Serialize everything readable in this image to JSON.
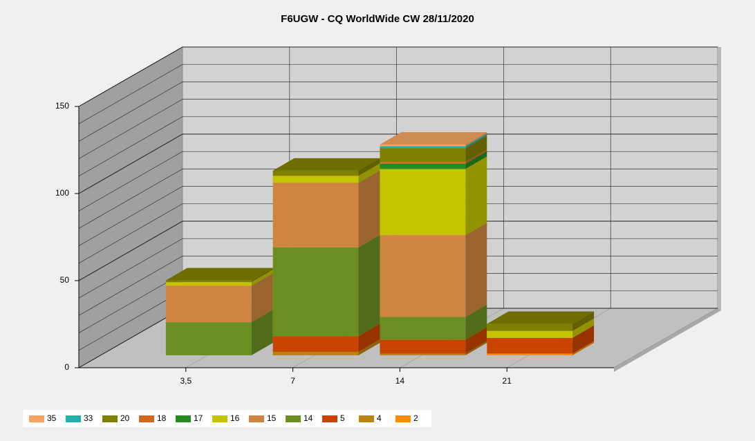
{
  "chart_data": {
    "type": "bar3d_stacked",
    "title": "F6UGW - CQ WorldWide CW 28/11/2020",
    "categories": [
      "3,5",
      "7",
      "14",
      "21"
    ],
    "series": [
      {
        "name": "35",
        "color": "#f4a460",
        "values": [
          0,
          0,
          1,
          0
        ]
      },
      {
        "name": "33",
        "color": "#20b2aa",
        "values": [
          0,
          0,
          1,
          0
        ]
      },
      {
        "name": "20",
        "color": "#808000",
        "values": [
          1,
          3,
          8,
          4
        ]
      },
      {
        "name": "18",
        "color": "#d2691e",
        "values": [
          0,
          0,
          1,
          0
        ]
      },
      {
        "name": "17",
        "color": "#228b22",
        "values": [
          0,
          0,
          3,
          0
        ]
      },
      {
        "name": "16",
        "color": "#c4c400",
        "values": [
          2,
          4,
          38,
          4
        ]
      },
      {
        "name": "15",
        "color": "#cd853f",
        "values": [
          21,
          37,
          47,
          0
        ]
      },
      {
        "name": "14",
        "color": "#6b8e23",
        "values": [
          19,
          51,
          13,
          0
        ]
      },
      {
        "name": "5",
        "color": "#c84400",
        "values": [
          0,
          9,
          8,
          9
        ]
      },
      {
        "name": "4",
        "color": "#b8860b",
        "values": [
          0,
          2,
          1,
          0
        ]
      },
      {
        "name": "2",
        "color": "#ff8c00",
        "values": [
          0,
          0,
          0,
          1
        ]
      }
    ],
    "ylim": [
      0,
      150
    ],
    "yticks": [
      0,
      50,
      100,
      150
    ],
    "grid": true,
    "grid_step": 10,
    "legend": "bottom-left"
  }
}
